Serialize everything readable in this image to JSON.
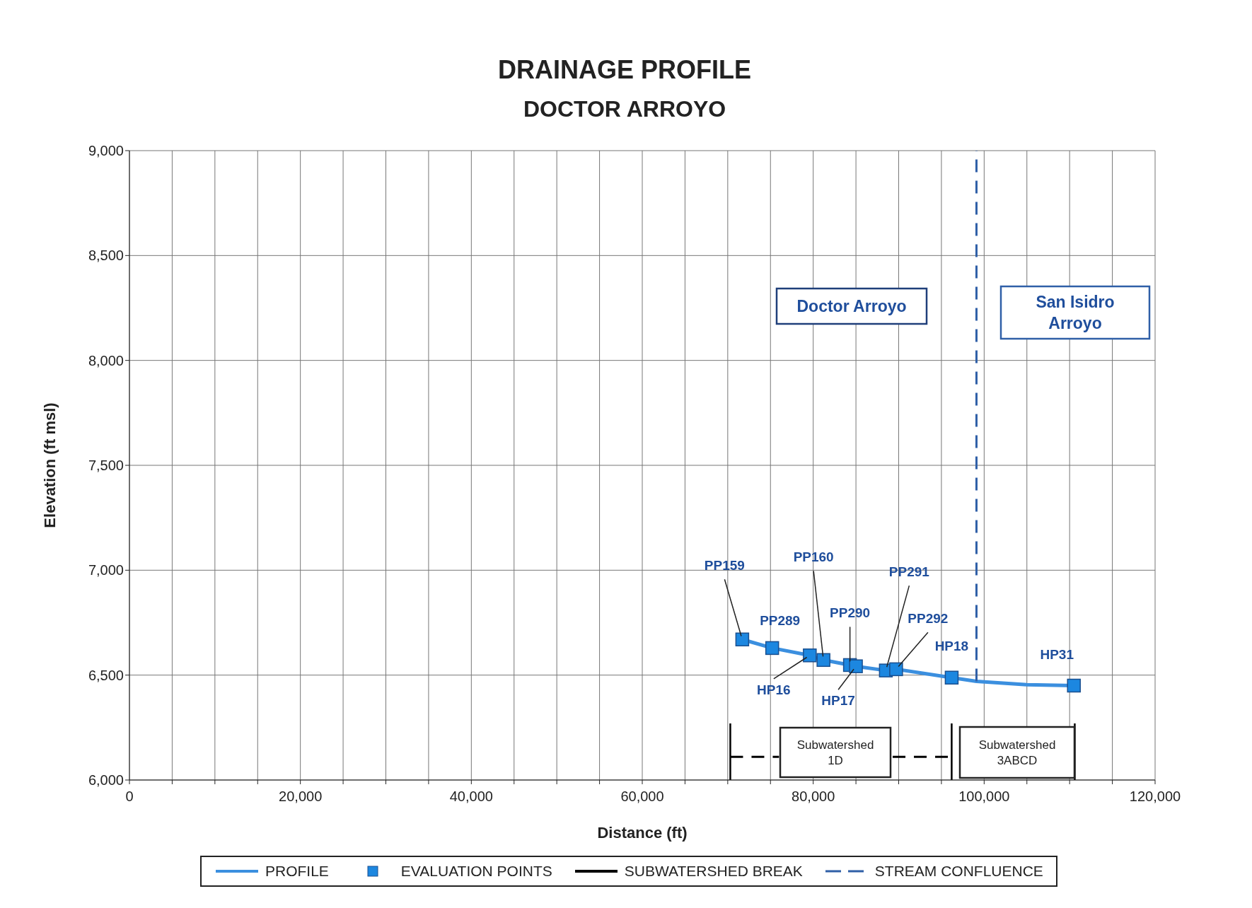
{
  "chart_data": {
    "type": "line",
    "title": "DRAINAGE PROFILE",
    "subtitle": "DOCTOR ARROYO",
    "xlabel": "Distance (ft)",
    "ylabel": "Elevation (ft msl)",
    "xlim": [
      0,
      120000
    ],
    "xticks": [
      {
        "value": 0,
        "label": "0"
      },
      {
        "value": 5000,
        "label": null
      },
      {
        "value": 10000,
        "label": null
      },
      {
        "value": 15000,
        "label": null
      },
      {
        "value": 20000,
        "label": "20,000"
      },
      {
        "value": 25000,
        "label": null
      },
      {
        "value": 30000,
        "label": null
      },
      {
        "value": 35000,
        "label": null
      },
      {
        "value": 40000,
        "label": "40,000"
      },
      {
        "value": 45000,
        "label": null
      },
      {
        "value": 50000,
        "label": null
      },
      {
        "value": 55000,
        "label": null
      },
      {
        "value": 60000,
        "label": "60,000"
      },
      {
        "value": 65000,
        "label": null
      },
      {
        "value": 70000,
        "label": null
      },
      {
        "value": 75000,
        "label": null
      },
      {
        "value": 80000,
        "label": "80,000"
      },
      {
        "value": 85000,
        "label": null
      },
      {
        "value": 90000,
        "label": null
      },
      {
        "value": 95000,
        "label": null
      },
      {
        "value": 100000,
        "label": "100,000"
      },
      {
        "value": 105000,
        "label": null
      },
      {
        "value": 110000,
        "label": null
      },
      {
        "value": 115000,
        "label": null
      },
      {
        "value": 120000,
        "label": "120,000"
      }
    ],
    "ylim": [
      6000,
      9000
    ],
    "yticks": [
      {
        "value": 6000,
        "label": "6,000"
      },
      {
        "value": 6500,
        "label": "6,500"
      },
      {
        "value": 7000,
        "label": "7,000"
      },
      {
        "value": 7500,
        "label": "7,500"
      },
      {
        "value": 8000,
        "label": "8,000"
      },
      {
        "value": 8500,
        "label": "8,500"
      },
      {
        "value": 9000,
        "label": "9,000"
      }
    ],
    "grid": true,
    "legend": "bottom",
    "series": [
      {
        "name": "PROFILE",
        "color": "#3b8fdf",
        "marker": "none",
        "line_style": "solid",
        "x": [
          71700,
          75200,
          79600,
          81200,
          84300,
          85000,
          88500,
          89700,
          96200,
          99100,
          105000,
          110500
        ],
        "values": [
          6670,
          6629,
          6594,
          6572,
          6548,
          6542,
          6522,
          6528,
          6488,
          6470,
          6454,
          6450
        ]
      },
      {
        "name": "EVALUATION POINTS",
        "type": "scatter",
        "color": "#1c87e0",
        "marker": "square",
        "x": [
          71700,
          75200,
          79600,
          81200,
          84300,
          85000,
          88500,
          89700,
          96200,
          110500
        ],
        "values": [
          6670,
          6629,
          6594,
          6572,
          6548,
          6542,
          6522,
          6528,
          6488,
          6450
        ]
      },
      {
        "name": "SUBWATERSHED BREAK",
        "color": "#000000",
        "marker": "none",
        "line_style": "solid",
        "x": [
          70300,
          70300,
          null,
          96200,
          96200,
          null,
          110600,
          110600
        ],
        "values": [
          6000,
          6270,
          null,
          6000,
          6270,
          null,
          6000,
          6270
        ]
      },
      {
        "name": "STREAM CONFLUENCE",
        "color": "#2f5fa7",
        "marker": "none",
        "line_style": "dashed",
        "x": [
          99100,
          99100
        ],
        "values": [
          6470,
          9000
        ]
      },
      {
        "color": "#000000",
        "marker": "none",
        "line_style": "dashed",
        "x": [
          70300,
          76000,
          null,
          89300,
          96200
        ],
        "values": [
          6110,
          6110,
          null,
          6110,
          6110
        ]
      }
    ],
    "annotations": [
      "Doctor Arroyo",
      "San Isidro Arroyo",
      "Subwatershed 1D",
      "Subwatershed 3ABCD",
      {
        "text": "PP159",
        "x": 71700,
        "y": 6670
      },
      {
        "text": "PP289",
        "x": 75200,
        "y": 6629
      },
      {
        "text": "HP16",
        "x": 79600,
        "y": 6594
      },
      {
        "text": "PP160",
        "x": 81200,
        "y": 6572
      },
      {
        "text": "PP290",
        "x": 84300,
        "y": 6548
      },
      {
        "text": "HP17",
        "x": 85000,
        "y": 6542
      },
      {
        "text": "PP291",
        "x": 88500,
        "y": 6522
      },
      {
        "text": "PP292",
        "x": 89700,
        "y": 6528
      },
      {
        "text": "HP18",
        "x": 96200,
        "y": 6488
      },
      {
        "text": "HP31",
        "x": 110500,
        "y": 6450
      }
    ]
  }
}
